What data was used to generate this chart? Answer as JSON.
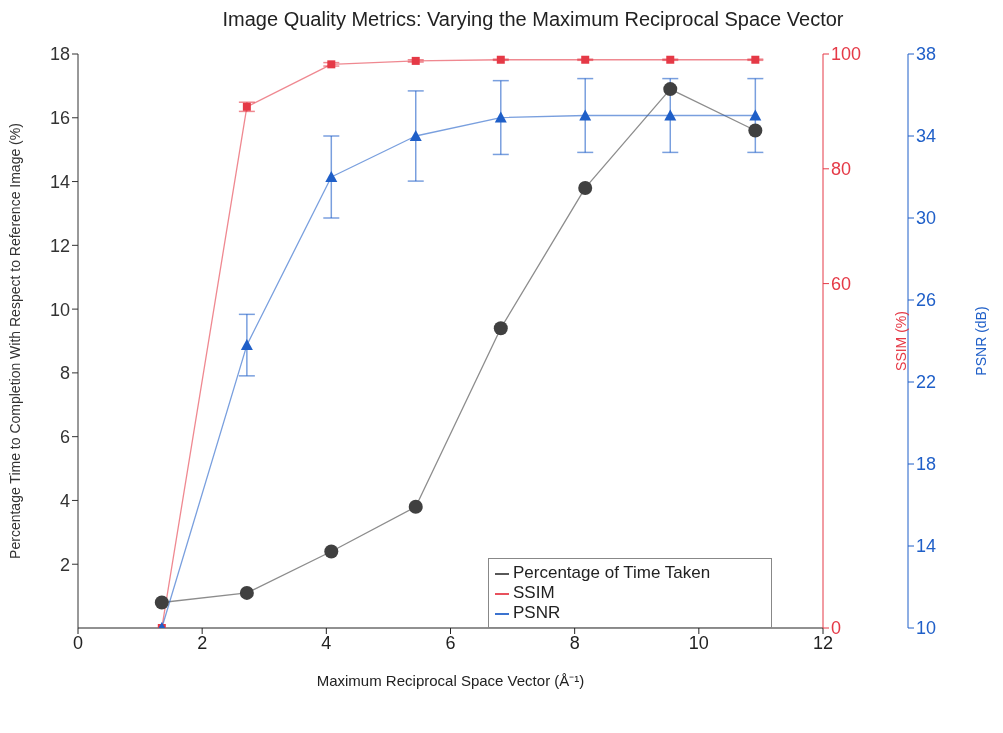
{
  "chart_data": {
    "type": "line",
    "title": "Image Quality Metrics: Varying the Maximum Reciprocal Space Vector",
    "xlabel": "Maximum Reciprocal Space Vector (Å⁻¹)",
    "ylabel": "Percentage Time to Completion With Respect to Reference Image (%)",
    "y2label": "SSIM (%)",
    "y3label": "PSNR (dB)",
    "x": [
      1.35,
      2.72,
      4.08,
      5.44,
      6.81,
      8.17,
      9.54,
      10.91
    ],
    "series": [
      {
        "name": "Percentage of Time Taken",
        "color": "#404040",
        "marker": "circle",
        "values": [
          0.8,
          1.1,
          2.4,
          3.8,
          9.4,
          13.8,
          16.9,
          15.6
        ]
      },
      {
        "name": "SSIM",
        "color": "#e53946",
        "marker": "square",
        "axis": "y2",
        "values": [
          0,
          90.8,
          98.2,
          98.8,
          99.0,
          99.0,
          99.0,
          99.0
        ],
        "errors": [
          null,
          0.8,
          0.3,
          0.2,
          0.1,
          0.1,
          0.1,
          0.1
        ]
      },
      {
        "name": "PSNR",
        "color": "#1f5fc8",
        "marker": "triangle",
        "axis": "y3",
        "values": [
          10,
          23.8,
          32.0,
          34.0,
          34.9,
          35.0,
          35.0,
          35.0
        ],
        "errors": [
          null,
          1.5,
          2.0,
          2.2,
          1.8,
          1.8,
          1.8,
          1.8
        ]
      }
    ],
    "xlim": [
      0,
      12
    ],
    "xticks": [
      0,
      2,
      4,
      6,
      8,
      10,
      12
    ],
    "ylim": [
      0,
      18
    ],
    "yticks": [
      2,
      4,
      6,
      8,
      10,
      12,
      14,
      16,
      18
    ],
    "y2lim": [
      0,
      100
    ],
    "y2ticks": [
      0,
      60,
      80,
      100
    ],
    "y3lim": [
      10,
      38
    ],
    "y3ticks": [
      10,
      14,
      18,
      22,
      26,
      30,
      34,
      38
    ],
    "legend": "bottom right",
    "grid": false
  }
}
